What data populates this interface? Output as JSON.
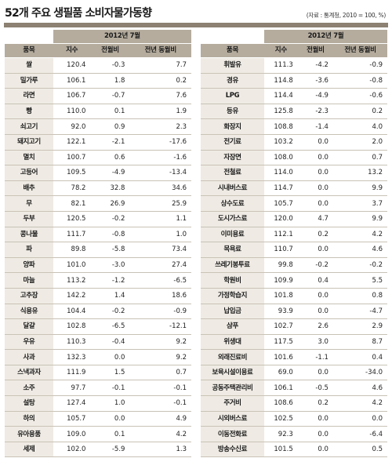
{
  "header": {
    "title": "52개 주요 생필품 소비자물가동향",
    "source": "(자료 : 통계청, 2010 = 100, %)"
  },
  "columns": {
    "period": "2012년 7월",
    "item": "품목",
    "index": "지수",
    "mom": "전월비",
    "yoy": "전년 동월비"
  },
  "left_rows": [
    {
      "item": "쌀",
      "index": "120.4",
      "mom": "-0.3",
      "yoy": "7.7"
    },
    {
      "item": "밀가루",
      "index": "106.1",
      "mom": "1.8",
      "yoy": "0.2"
    },
    {
      "item": "라면",
      "index": "106.7",
      "mom": "-0.7",
      "yoy": "7.6"
    },
    {
      "item": "빵",
      "index": "110.0",
      "mom": "0.1",
      "yoy": "1.9"
    },
    {
      "item": "쇠고기",
      "index": "92.0",
      "mom": "0.9",
      "yoy": "2.3"
    },
    {
      "item": "돼지고기",
      "index": "122.1",
      "mom": "-2.1",
      "yoy": "-17.6"
    },
    {
      "item": "멸치",
      "index": "100.7",
      "mom": "0.6",
      "yoy": "-1.6"
    },
    {
      "item": "고등어",
      "index": "109.5",
      "mom": "-4.9",
      "yoy": "-13.4"
    },
    {
      "item": "배추",
      "index": "78.2",
      "mom": "32.8",
      "yoy": "34.6"
    },
    {
      "item": "무",
      "index": "82.1",
      "mom": "26.9",
      "yoy": "25.9"
    },
    {
      "item": "두부",
      "index": "120.5",
      "mom": "-0.2",
      "yoy": "1.1"
    },
    {
      "item": "콩나물",
      "index": "111.7",
      "mom": "-0.8",
      "yoy": "1.0"
    },
    {
      "item": "파",
      "index": "89.8",
      "mom": "-5.8",
      "yoy": "73.4"
    },
    {
      "item": "양파",
      "index": "101.0",
      "mom": "-3.0",
      "yoy": "27.4"
    },
    {
      "item": "마늘",
      "index": "113.2",
      "mom": "-1.2",
      "yoy": "-6.5"
    },
    {
      "item": "고추장",
      "index": "142.2",
      "mom": "1.4",
      "yoy": "18.6"
    },
    {
      "item": "식용유",
      "index": "104.4",
      "mom": "-0.2",
      "yoy": "-0.9"
    },
    {
      "item": "달걀",
      "index": "102.8",
      "mom": "-6.5",
      "yoy": "-12.1"
    },
    {
      "item": "우유",
      "index": "110.3",
      "mom": "-0.4",
      "yoy": "9.2"
    },
    {
      "item": "사과",
      "index": "132.3",
      "mom": "0.0",
      "yoy": "9.2"
    },
    {
      "item": "스낵과자",
      "index": "111.9",
      "mom": "1.5",
      "yoy": "0.7"
    },
    {
      "item": "소주",
      "index": "97.7",
      "mom": "-0.1",
      "yoy": "-0.1"
    },
    {
      "item": "설탕",
      "index": "127.4",
      "mom": "1.0",
      "yoy": "-0.1"
    },
    {
      "item": "하의",
      "index": "105.7",
      "mom": "0.0",
      "yoy": "4.9"
    },
    {
      "item": "유아용품",
      "index": "109.0",
      "mom": "0.1",
      "yoy": "4.2"
    },
    {
      "item": "세제",
      "index": "102.0",
      "mom": "-5.9",
      "yoy": "1.3"
    }
  ],
  "right_rows": [
    {
      "item": "휘발유",
      "index": "111.3",
      "mom": "-4.2",
      "yoy": "-0.9"
    },
    {
      "item": "경유",
      "index": "114.8",
      "mom": "-3.6",
      "yoy": "-0.8"
    },
    {
      "item": "LPG",
      "index": "114.4",
      "mom": "-4.9",
      "yoy": "-0.6"
    },
    {
      "item": "등유",
      "index": "125.8",
      "mom": "-2.3",
      "yoy": "0.2"
    },
    {
      "item": "화장지",
      "index": "108.8",
      "mom": "-1.4",
      "yoy": "4.0"
    },
    {
      "item": "전기료",
      "index": "103.2",
      "mom": "0.0",
      "yoy": "2.0"
    },
    {
      "item": "자장면",
      "index": "108.0",
      "mom": "0.0",
      "yoy": "0.7"
    },
    {
      "item": "전철료",
      "index": "114.0",
      "mom": "0.0",
      "yoy": "13.2"
    },
    {
      "item": "시내버스료",
      "index": "114.7",
      "mom": "0.0",
      "yoy": "9.9"
    },
    {
      "item": "상수도료",
      "index": "105.7",
      "mom": "0.0",
      "yoy": "3.7"
    },
    {
      "item": "도시가스료",
      "index": "120.0",
      "mom": "4.7",
      "yoy": "9.9"
    },
    {
      "item": "이미용료",
      "index": "112.1",
      "mom": "0.2",
      "yoy": "4.2"
    },
    {
      "item": "목욕료",
      "index": "110.7",
      "mom": "0.0",
      "yoy": "4.6"
    },
    {
      "item": "쓰레기봉투료",
      "index": "99.8",
      "mom": "-0.2",
      "yoy": "-0.2"
    },
    {
      "item": "학원비",
      "index": "109.9",
      "mom": "0.4",
      "yoy": "5.5"
    },
    {
      "item": "가정학습지",
      "index": "101.8",
      "mom": "0.0",
      "yoy": "0.8"
    },
    {
      "item": "납입금",
      "index": "93.9",
      "mom": "0.0",
      "yoy": "-4.7"
    },
    {
      "item": "샴푸",
      "index": "102.7",
      "mom": "2.6",
      "yoy": "2.9"
    },
    {
      "item": "위생대",
      "index": "117.5",
      "mom": "3.0",
      "yoy": "8.7"
    },
    {
      "item": "외래진료비",
      "index": "101.6",
      "mom": "-1.1",
      "yoy": "0.4"
    },
    {
      "item": "보육시설이용료",
      "index": "69.0",
      "mom": "0.0",
      "yoy": "-34.0"
    },
    {
      "item": "공동주택관리비",
      "index": "106.1",
      "mom": "-0.5",
      "yoy": "4.6"
    },
    {
      "item": "주거비",
      "index": "108.6",
      "mom": "0.2",
      "yoy": "4.2"
    },
    {
      "item": "시외버스료",
      "index": "102.5",
      "mom": "0.0",
      "yoy": "0.0"
    },
    {
      "item": "이동전화료",
      "index": "92.3",
      "mom": "0.0",
      "yoy": "-6.4"
    },
    {
      "item": "방송수신료",
      "index": "101.5",
      "mom": "0.0",
      "yoy": "0.5"
    }
  ]
}
